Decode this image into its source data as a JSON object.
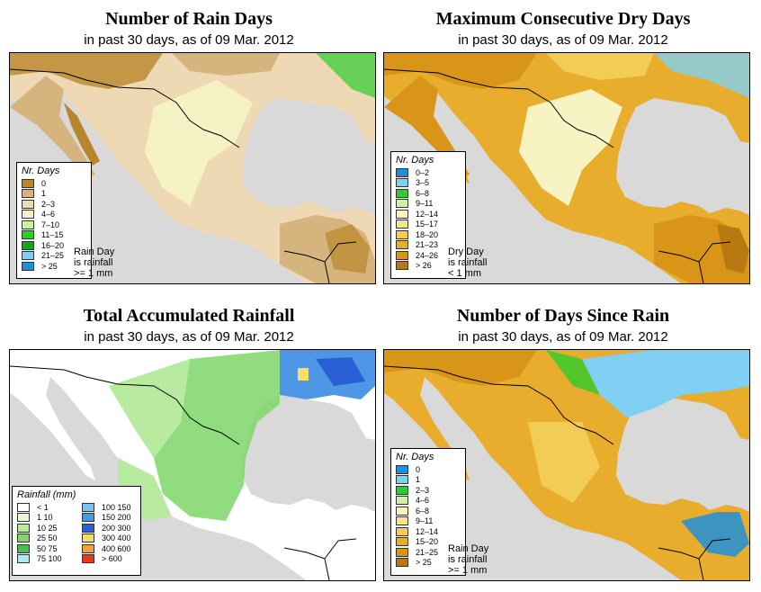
{
  "panels": {
    "rain_days": {
      "title": "Number of Rain Days",
      "subtitle": "in past 30 days, as of  09 Mar. 2012",
      "legend_title": "Nr. Days",
      "legend": [
        {
          "label": "0",
          "color": "#b8862b"
        },
        {
          "label": "1",
          "color": "#d6b47e"
        },
        {
          "label": "2–3",
          "color": "#efd9b4"
        },
        {
          "label": "4–6",
          "color": "#f5f2c6"
        },
        {
          "label": "7–10",
          "color": "#ccf2a6"
        },
        {
          "label": "11–15",
          "color": "#2ecc2e"
        },
        {
          "label": "16–20",
          "color": "#18a518"
        },
        {
          "label": "21–25",
          "color": "#7fd0f2"
        },
        {
          "label": "> 25",
          "color": "#1f8fdc"
        }
      ],
      "note": [
        "Rain Day",
        "is rainfall",
        ">= 1 mm"
      ]
    },
    "dry_days": {
      "title": "Maximum Consecutive Dry Days",
      "subtitle": "in past 30 days, as of  09 Mar. 2012",
      "legend_title": "Nr. Days",
      "legend": [
        {
          "label": "0–2",
          "color": "#1f8fdc"
        },
        {
          "label": "3–5",
          "color": "#7fd0f2"
        },
        {
          "label": "6–8",
          "color": "#2ecc2e"
        },
        {
          "label": "9–11",
          "color": "#ccf2a6"
        },
        {
          "label": "12–14",
          "color": "#f7f3c3"
        },
        {
          "label": "15–17",
          "color": "#f7e48f"
        },
        {
          "label": "18–20",
          "color": "#f2cc55"
        },
        {
          "label": "21–23",
          "color": "#e8ad2c"
        },
        {
          "label": "24–26",
          "color": "#d99518"
        },
        {
          "label": "> 26",
          "color": "#b87812"
        }
      ],
      "note": [
        "Dry Day",
        "is rainfall",
        "< 1 mm"
      ]
    },
    "rainfall": {
      "title": "Total Accumulated Rainfall",
      "subtitle": "in past 30 days, as of  09 Mar. 2012",
      "legend_title": "Rainfall (mm)",
      "legend": [
        {
          "label": "< 1",
          "color": "#ffffff"
        },
        {
          "label": "1    10",
          "color": "#e8f7d8"
        },
        {
          "label": "10    25",
          "color": "#b8eaa0"
        },
        {
          "label": "25    50",
          "color": "#7fd66a"
        },
        {
          "label": "50    75",
          "color": "#46c046"
        },
        {
          "label": "75    100",
          "color": "#aee9f5"
        },
        {
          "label": "100    150",
          "color": "#7cc3ee"
        },
        {
          "label": "150    200",
          "color": "#4d97e6"
        },
        {
          "label": "200    300",
          "color": "#2a5fd6"
        },
        {
          "label": "300    400",
          "color": "#f6dc6a"
        },
        {
          "label": "400    600",
          "color": "#f2a23a"
        },
        {
          "label": "> 600",
          "color": "#e83a1a"
        }
      ]
    },
    "since_rain": {
      "title": "Number of Days Since Rain",
      "subtitle": "in past 30 days, as of  09 Mar. 2012",
      "legend_title": "Nr. Days",
      "legend": [
        {
          "label": "0",
          "color": "#1f8fdc"
        },
        {
          "label": "1",
          "color": "#7fd0f2"
        },
        {
          "label": "2–3",
          "color": "#2ecc2e"
        },
        {
          "label": "4–6",
          "color": "#ccf2a6"
        },
        {
          "label": "6–8",
          "color": "#f7f3c3"
        },
        {
          "label": "9–11",
          "color": "#f7e48f"
        },
        {
          "label": "12–14",
          "color": "#f2cc55"
        },
        {
          "label": "15–20",
          "color": "#e8ad2c"
        },
        {
          "label": "21–25",
          "color": "#d99518"
        },
        {
          "label": "> 25",
          "color": "#b87812"
        }
      ],
      "note": [
        "Rain Day",
        "is rainfall",
        ">= 1 mm"
      ]
    }
  }
}
